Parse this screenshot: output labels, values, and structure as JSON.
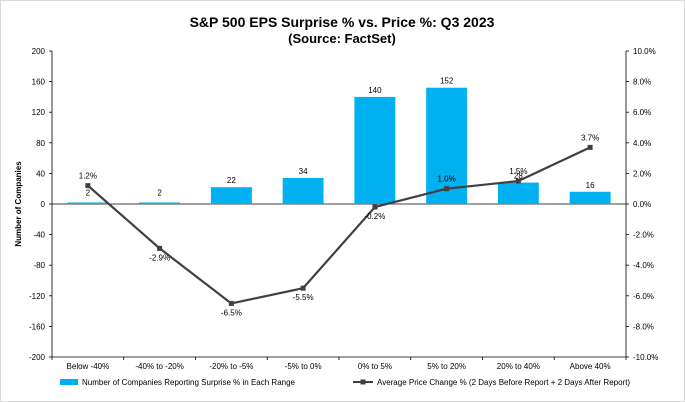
{
  "colors": {
    "bar": "#00b0f0",
    "line": "#404040",
    "axis": "#000000",
    "gridline": "#bfbfbf",
    "frame": "#d9d9d9"
  },
  "chart_data": {
    "type": "bar",
    "title": "S&P 500 EPS Surprise % vs. Price %: Q3 2023",
    "subtitle": "(Source: FactSet)",
    "ylabel": "Number of Companies",
    "y2label": "",
    "categories": [
      "Below -40%",
      "-40% to -20%",
      "-20% to -5%",
      "-5% to 0%",
      "0% to 5%",
      "5% to 20%",
      "20% to 40%",
      "Above 40%"
    ],
    "ylim": [
      -200,
      200
    ],
    "yticks": [
      "200",
      "160",
      "120",
      "80",
      "40",
      "0",
      "-40",
      "-80",
      "-120",
      "-160",
      "-200"
    ],
    "y2lim": [
      -10.0,
      10.0
    ],
    "y2ticks": [
      "10.0%",
      "8.0%",
      "6.0%",
      "4.0%",
      "2.0%",
      "0.0%",
      "-2.0%",
      "-4.0%",
      "-6.0%",
      "-8.0%",
      "-10.0%"
    ],
    "grid": false,
    "legend_position": "bottom",
    "series": [
      {
        "name": "Number of Companies Reporting Surprise % in Each Range",
        "type": "bar",
        "axis": "left",
        "values": [
          2,
          2,
          22,
          34,
          140,
          152,
          28,
          16
        ],
        "labels": [
          "2",
          "2",
          "22",
          "34",
          "140",
          "152",
          "28",
          "16"
        ]
      },
      {
        "name": "Average Price Change % (2 Days Before Report + 2 Days After Report)",
        "type": "line",
        "axis": "right",
        "values": [
          1.2,
          -2.9,
          -6.5,
          -5.5,
          -0.2,
          1.0,
          1.5,
          3.7
        ],
        "labels": [
          "1.2%",
          "-2.9%",
          "-6.5%",
          "-5.5%",
          "-0.2%",
          "1.0%",
          "1.5%",
          "3.7%"
        ]
      }
    ]
  }
}
